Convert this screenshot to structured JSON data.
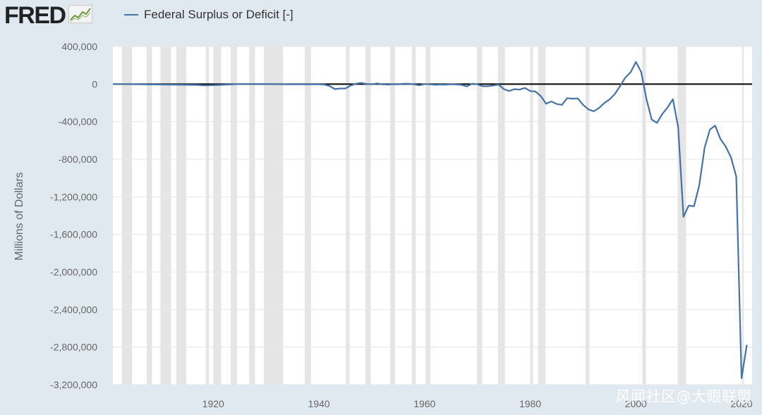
{
  "brand": {
    "name": "FRED",
    "icon": "fred-trend-icon"
  },
  "legend": {
    "label": "Federal Surplus or Deficit [-]",
    "color": "#4572a7"
  },
  "watermark": "风闻社区@大眼联盟",
  "colors": {
    "plot_bg": "#ffffff",
    "recession": "#e5e5e5",
    "page_bg": "#e1e9f0",
    "zero_line": "#000000"
  },
  "chart_data": {
    "type": "line",
    "title": "Federal Surplus or Deficit [-]",
    "xlabel": "",
    "ylabel": "Millions of Dollars",
    "xlim": [
      1901,
      2022
    ],
    "ylim": [
      -3200000,
      400000
    ],
    "y_ticks": [
      400000,
      0,
      -400000,
      -800000,
      -1200000,
      -1600000,
      -2000000,
      -2400000,
      -2800000,
      -3200000
    ],
    "y_tick_labels": [
      "400,000",
      "0",
      "-400,000",
      "-800,000",
      "-1,200,000",
      "-1,600,000",
      "-2,000,000",
      "-2,400,000",
      "-2,800,000",
      "-3,200,000"
    ],
    "x_ticks": [
      1920,
      1940,
      1960,
      1980,
      2000,
      2020
    ],
    "x_tick_labels": [
      "1920",
      "1940",
      "1960",
      "1980",
      "2000",
      "2020"
    ],
    "recessions": [
      [
        1902.7,
        1904.6
      ],
      [
        1907.4,
        1908.4
      ],
      [
        1910.0,
        1912.0
      ],
      [
        1913.0,
        1914.9
      ],
      [
        1918.6,
        1919.2
      ],
      [
        1920.0,
        1921.5
      ],
      [
        1923.3,
        1924.5
      ],
      [
        1926.8,
        1927.9
      ],
      [
        1929.6,
        1933.2
      ],
      [
        1937.3,
        1938.5
      ],
      [
        1945.1,
        1945.8
      ],
      [
        1948.8,
        1949.8
      ],
      [
        1953.5,
        1954.4
      ],
      [
        1957.6,
        1958.3
      ],
      [
        1960.2,
        1961.1
      ],
      [
        1969.9,
        1970.9
      ],
      [
        1973.9,
        1975.2
      ],
      [
        1980.0,
        1980.5
      ],
      [
        1981.5,
        1982.9
      ],
      [
        1990.5,
        1991.2
      ],
      [
        2001.2,
        2001.9
      ],
      [
        2007.9,
        2009.5
      ],
      [
        2020.1,
        2020.4
      ]
    ],
    "series": [
      {
        "name": "Federal Surplus or Deficit [-]",
        "x": [
          1901,
          1917,
          1918,
          1919,
          1920,
          1925,
          1930,
          1935,
          1940,
          1941,
          1942,
          1943,
          1944,
          1945,
          1946,
          1947,
          1948,
          1949,
          1950,
          1951,
          1952,
          1953,
          1954,
          1955,
          1956,
          1957,
          1958,
          1959,
          1960,
          1961,
          1962,
          1963,
          1964,
          1965,
          1966,
          1967,
          1968,
          1969,
          1970,
          1971,
          1972,
          1973,
          1974,
          1975,
          1976,
          1977,
          1978,
          1979,
          1980,
          1981,
          1982,
          1983,
          1984,
          1985,
          1986,
          1987,
          1988,
          1989,
          1990,
          1991,
          1992,
          1993,
          1994,
          1995,
          1996,
          1997,
          1998,
          1999,
          2000,
          2001,
          2002,
          2003,
          2004,
          2005,
          2006,
          2007,
          2008,
          2009,
          2010,
          2011,
          2012,
          2013,
          2014,
          2015,
          2016,
          2017,
          2018,
          2019,
          2020,
          2021
        ],
        "values": [
          0,
          -9000,
          -13000,
          -13000,
          -12000,
          0,
          0,
          -3000,
          -3000,
          -5000,
          -20000,
          -54000,
          -47000,
          -47000,
          -16000,
          4000,
          12000,
          1000,
          -3000,
          6000,
          -2000,
          -6000,
          -1000,
          -3000,
          4000,
          3000,
          -3000,
          -13000,
          0,
          -3000,
          -7000,
          -5000,
          -6000,
          -1000,
          -4000,
          -9000,
          -25000,
          3000,
          -3000,
          -23000,
          -23000,
          -15000,
          -6000,
          -53000,
          -74000,
          -54000,
          -59000,
          -41000,
          -74000,
          -79000,
          -128000,
          -208000,
          -185000,
          -212000,
          -221000,
          -150000,
          -155000,
          -153000,
          -221000,
          -269000,
          -290000,
          -255000,
          -203000,
          -164000,
          -107000,
          -22000,
          69000,
          126000,
          236000,
          128000,
          -158000,
          -378000,
          -413000,
          -318000,
          -248000,
          -161000,
          -459000,
          -1413000,
          -1294000,
          -1300000,
          -1077000,
          -680000,
          -485000,
          -442000,
          -585000,
          -665000,
          -779000,
          -984000,
          -3132000,
          -2775000
        ]
      }
    ]
  }
}
